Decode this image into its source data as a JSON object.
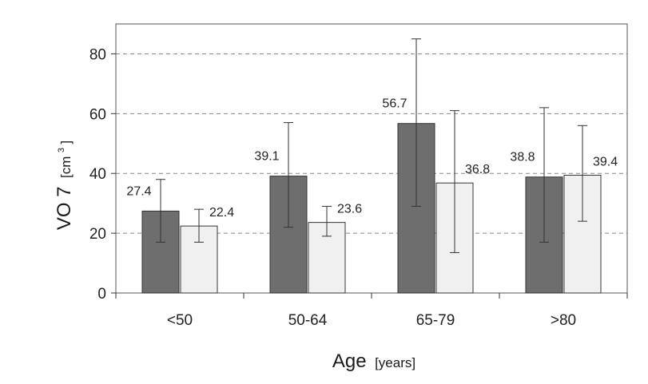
{
  "chart_data": {
    "type": "bar",
    "categories": [
      "<50",
      "50-64",
      "65-79",
      ">80"
    ],
    "series": [
      {
        "values": [
          27.4,
          39.1,
          56.7,
          38.8
        ],
        "error_low": [
          17,
          22,
          29,
          17
        ],
        "error_high": [
          38,
          57,
          85,
          62
        ],
        "color": "#6e6e6e"
      },
      {
        "values": [
          22.4,
          23.6,
          36.8,
          39.4
        ],
        "error_low": [
          17,
          19,
          13.5,
          24
        ],
        "error_high": [
          28,
          29,
          61,
          56
        ],
        "color": "#f4f4f4"
      }
    ],
    "data_labels": [
      [
        "27.4",
        "39.1",
        "56.7",
        "38.8"
      ],
      [
        "22.4",
        "23.6",
        "36.8",
        "39.4"
      ]
    ],
    "xlabel": "Age",
    "xlabel_unit": "[years]",
    "ylabel": "VO 7",
    "ylabel_unit": "[cm",
    "ylabel_unit_sup": "3",
    "ylabel_unit_close": "]",
    "ylim": [
      0,
      90
    ],
    "yticks": [
      0,
      20,
      40,
      60,
      80
    ],
    "grid": true,
    "legend": "none"
  }
}
